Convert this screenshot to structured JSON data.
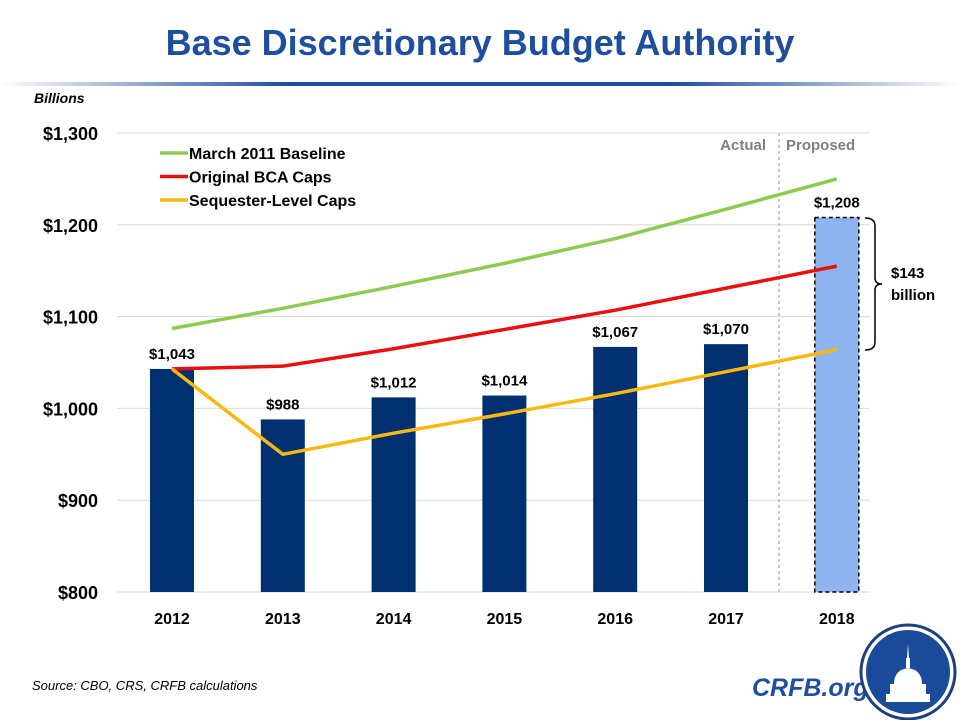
{
  "chart_data": {
    "type": "bar",
    "title": "Base Discretionary Budget Authority",
    "ylabel": "Billions",
    "categories": [
      "2012",
      "2013",
      "2014",
      "2015",
      "2016",
      "2017",
      "2018"
    ],
    "ylim": [
      800,
      1300
    ],
    "yticks": [
      800,
      900,
      1000,
      1100,
      1200,
      1300
    ],
    "ytick_labels": [
      "$800",
      "$900",
      "$1,000",
      "$1,100",
      "$1,200",
      "$1,300"
    ],
    "grid": true,
    "bars": {
      "values": [
        1043,
        988,
        1012,
        1014,
        1067,
        1070,
        1208
      ],
      "labels": [
        "$1,043",
        "$988",
        "$1,012",
        "$1,014",
        "$1,067",
        "$1,070",
        "$1,208"
      ],
      "colors": [
        "#003070",
        "#003070",
        "#003070",
        "#003070",
        "#003070",
        "#003070",
        "#8eb4f0"
      ]
    },
    "series": [
      {
        "name": "March 2011 Baseline",
        "color": "#8dcb50",
        "values": [
          1087,
          1109,
          1133,
          1158,
          1185,
          1217,
          1250
        ]
      },
      {
        "name": "Original BCA Caps",
        "color": "#e81010",
        "values": [
          1043,
          1046,
          1065,
          1086,
          1107,
          1131,
          1155
        ]
      },
      {
        "name": "Sequester-Level Caps",
        "color": "#f6b912",
        "values": [
          1043,
          950,
          973,
          994,
          1016,
          1040,
          1064
        ]
      }
    ],
    "legend_position": "top-left",
    "annotations": {
      "actual": "Actual",
      "proposed": "Proposed",
      "gap_line1": "$143",
      "gap_line2": "billion"
    }
  },
  "footer": {
    "source": "Source: CBO, CRS, CRFB calculations",
    "brand": "CRFB.org"
  }
}
